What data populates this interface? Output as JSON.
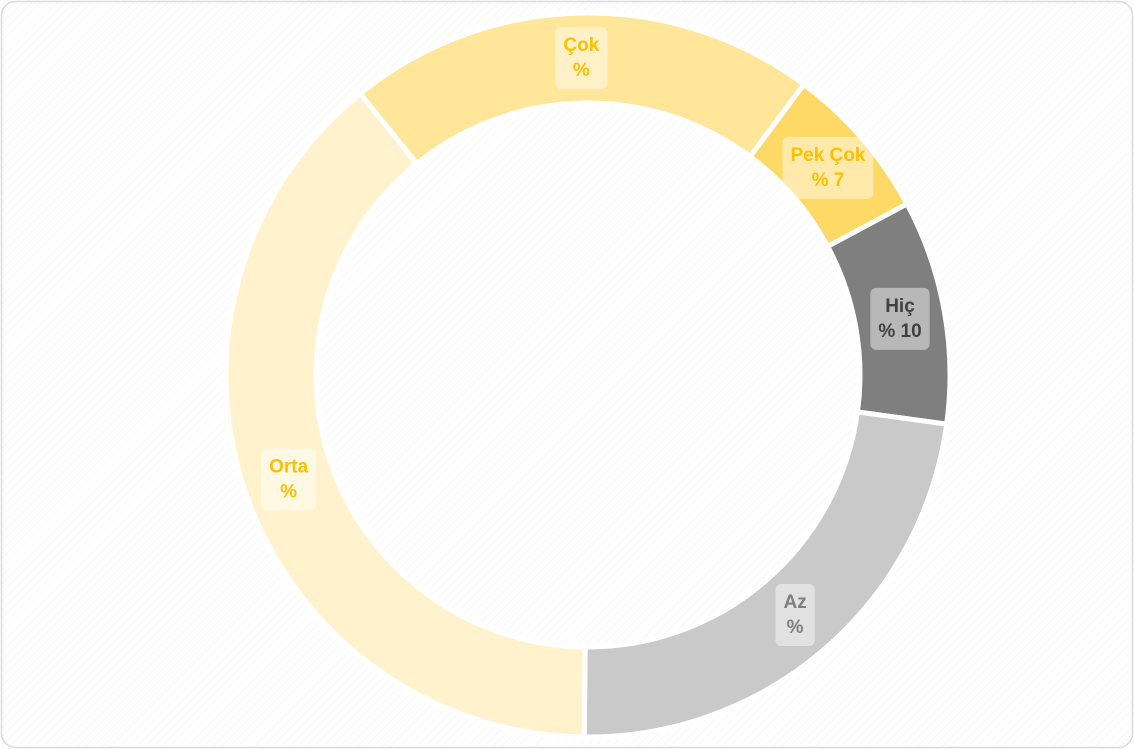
{
  "chart_data": {
    "type": "donut",
    "categories": [
      "Çok",
      "Pek Çok",
      "Hiç",
      "Az",
      "Orta"
    ],
    "values": [
      21,
      7,
      10,
      23,
      39
    ],
    "value_labels": [
      "%",
      "% 7",
      "% 10",
      "%",
      "%"
    ],
    "colors": [
      "#ffe699",
      "#ffd966",
      "#7f7f7f",
      "#c9c9c9",
      "#fff2cc"
    ],
    "label_colors": [
      "#ffc000",
      "#ffc000",
      "#404040",
      "#7f7f7f",
      "#ffc000"
    ]
  }
}
